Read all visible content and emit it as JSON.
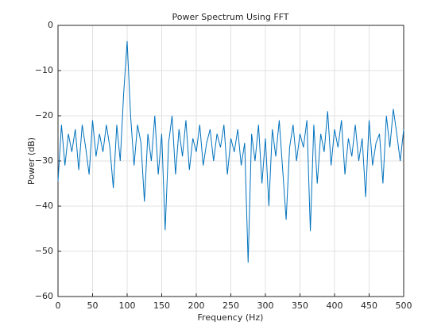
{
  "chart_data": {
    "type": "line",
    "title": "Power Spectrum Using FFT",
    "x_label": "Frequency (Hz)",
    "y_label": "Power (dB)",
    "x": [
      0,
      5,
      10,
      15,
      20,
      25,
      30,
      35,
      40,
      45,
      50,
      55,
      60,
      65,
      70,
      75,
      80,
      85,
      90,
      95,
      100,
      105,
      110,
      115,
      120,
      125,
      130,
      135,
      140,
      145,
      150,
      155,
      160,
      165,
      170,
      175,
      180,
      185,
      190,
      195,
      200,
      205,
      210,
      215,
      220,
      225,
      230,
      235,
      240,
      245,
      250,
      255,
      260,
      265,
      270,
      275,
      280,
      285,
      290,
      295,
      300,
      305,
      310,
      315,
      320,
      325,
      330,
      335,
      340,
      345,
      350,
      355,
      360,
      365,
      370,
      375,
      380,
      385,
      390,
      395,
      400,
      405,
      410,
      415,
      420,
      425,
      430,
      435,
      440,
      445,
      450,
      455,
      460,
      465,
      470,
      475,
      480,
      485,
      490,
      495,
      500
    ],
    "series": [
      {
        "name": "Power",
        "color": "#0072bd",
        "values": [
          -34.5,
          -22,
          -31,
          -24,
          -28,
          -23,
          -32,
          -22,
          -27,
          -33,
          -21,
          -29,
          -24,
          -28,
          -22,
          -27,
          -36,
          -22,
          -30,
          -15,
          -3.5,
          -20,
          -31,
          -22,
          -26,
          -39,
          -24,
          -30,
          -20,
          -33,
          -24,
          -45.3,
          -26,
          -20,
          -33,
          -23,
          -29,
          -21,
          -32,
          -25,
          -28,
          -22,
          -31,
          -26,
          -23,
          -30,
          -24,
          -27,
          -22,
          -33,
          -25,
          -28,
          -23,
          -31,
          -26,
          -52.5,
          -24,
          -30,
          -22,
          -35,
          -25,
          -40,
          -23,
          -29,
          -21,
          -32,
          -43,
          -27,
          -22,
          -30,
          -24,
          -27,
          -21,
          -45.5,
          -22,
          -35,
          -24,
          -28,
          -19,
          -31,
          -23,
          -27,
          -21,
          -33,
          -25,
          -29,
          -22,
          -30,
          -25,
          -38,
          -21,
          -31,
          -26,
          -24,
          -35,
          -20,
          -27,
          -18.5,
          -24,
          -30,
          -23
        ]
      }
    ],
    "xlim": [
      0,
      500
    ],
    "ylim": [
      -60,
      0
    ],
    "xticks": [
      0,
      50,
      100,
      150,
      200,
      250,
      300,
      350,
      400,
      450,
      500
    ],
    "yticks": [
      {
        "value": -60,
        "label": "−60"
      },
      {
        "value": -50,
        "label": "−50"
      },
      {
        "value": -40,
        "label": "−40"
      },
      {
        "value": -30,
        "label": "−30"
      },
      {
        "value": -20,
        "label": "−20"
      },
      {
        "value": -10,
        "label": "−10"
      },
      0
    ],
    "grid": true
  }
}
